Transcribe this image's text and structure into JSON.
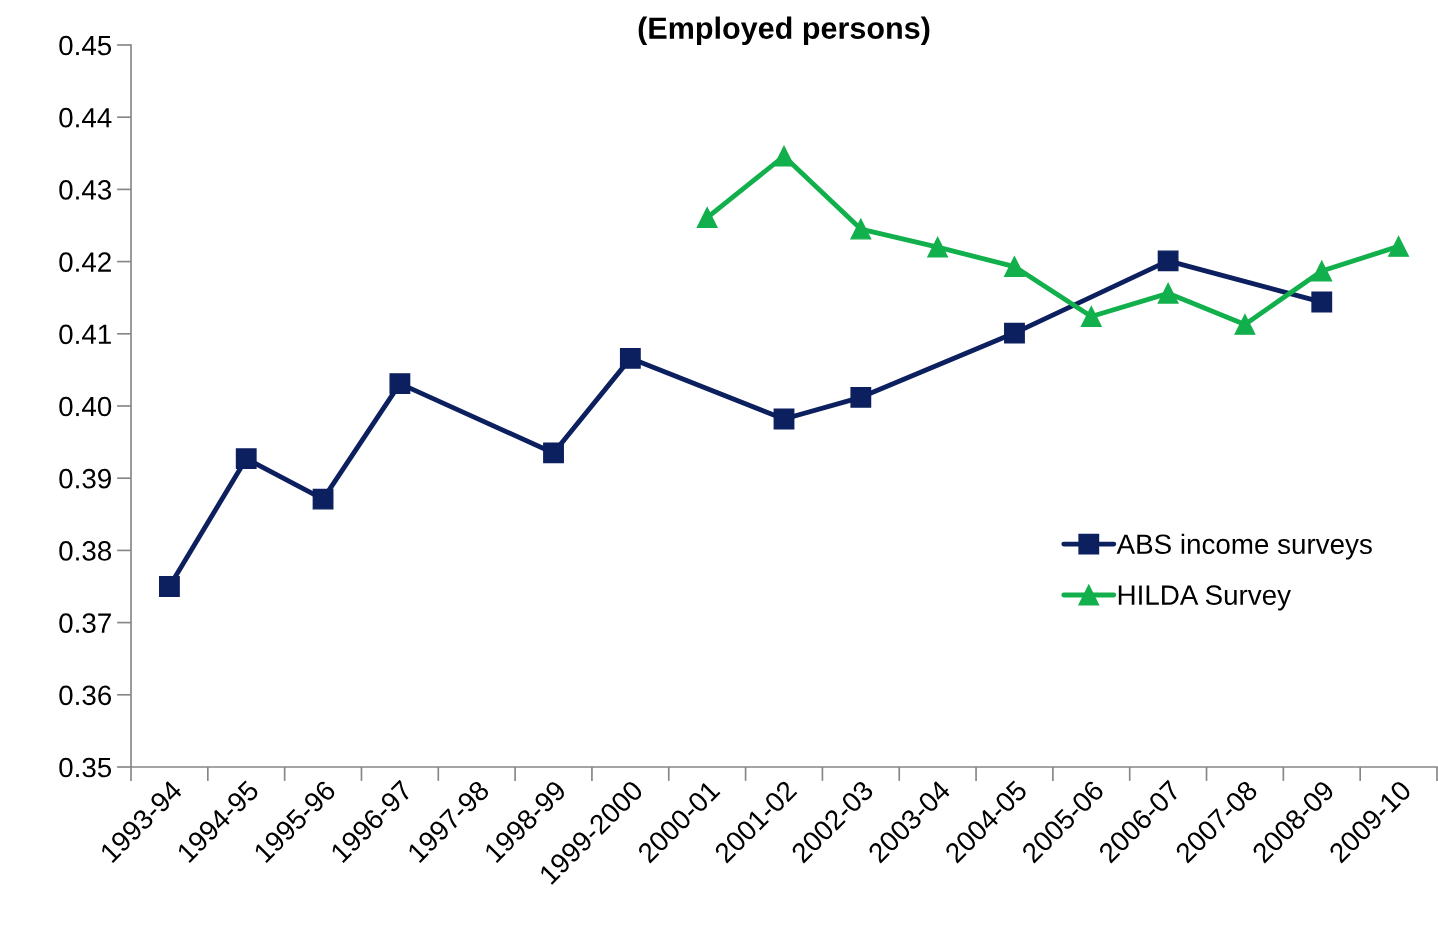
{
  "chart_data": {
    "type": "line",
    "title": "(Employed persons)",
    "categories": [
      "1993-94",
      "1994-95",
      "1995-96",
      "1996-97",
      "1997-98",
      "1998-99",
      "1999-2000",
      "2000-01",
      "2001-02",
      "2002-03",
      "2003-04",
      "2004-05",
      "2005-06",
      "2006-07",
      "2007-08",
      "2008-09",
      "2009-10"
    ],
    "series": [
      {
        "name": "ABS income surveys",
        "color": "#0c1f5e",
        "marker": "square",
        "values": [
          0.375,
          0.3927,
          0.3871,
          0.4031,
          null,
          0.3935,
          0.4066,
          null,
          0.3982,
          0.4012,
          null,
          0.4101,
          null,
          0.4201,
          null,
          0.4144,
          null
        ]
      },
      {
        "name": "HILDA Survey",
        "color": "#12b04c",
        "marker": "triangle",
        "values": [
          null,
          null,
          null,
          null,
          null,
          null,
          null,
          0.4261,
          0.4346,
          0.4245,
          0.422,
          0.4193,
          0.4124,
          0.4156,
          0.4113,
          0.4187,
          0.4221
        ]
      }
    ],
    "ylim": [
      0.35,
      0.45
    ],
    "yticks": [
      {
        "value": 0.35,
        "label": "0.35"
      },
      {
        "value": 0.36,
        "label": "0.36"
      },
      {
        "value": 0.37,
        "label": "0.37"
      },
      {
        "value": 0.38,
        "label": "0.38"
      },
      {
        "value": 0.39,
        "label": "0.39"
      },
      {
        "value": 0.4,
        "label": "0.40"
      },
      {
        "value": 0.41,
        "label": "0.41"
      },
      {
        "value": 0.42,
        "label": "0.42"
      },
      {
        "value": 0.43,
        "label": "0.43"
      },
      {
        "value": 0.44,
        "label": "0.44"
      },
      {
        "value": 0.45,
        "label": "0.45"
      }
    ],
    "grid": false,
    "legend": "right",
    "line_style": "solid"
  }
}
